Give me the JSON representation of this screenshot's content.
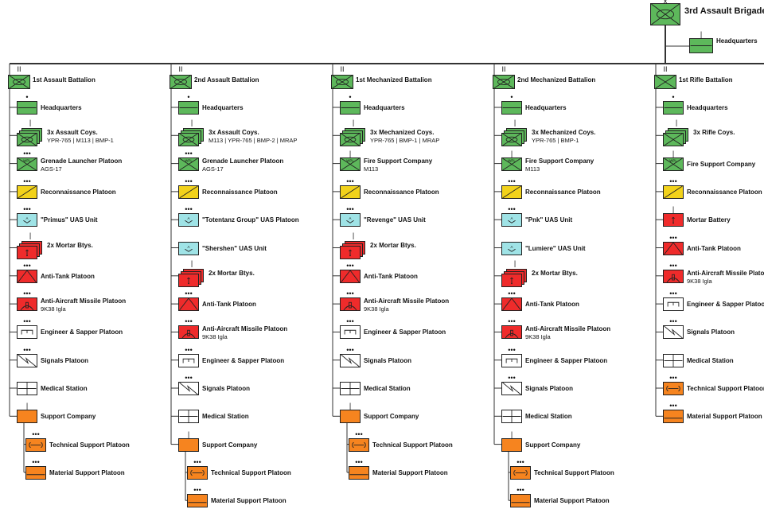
{
  "colors": {
    "infantry": "#5db85b",
    "recon": "#f2d21b",
    "uas": "#9fe3e6",
    "fires": "#ef2b2b",
    "support": "#f6841f",
    "white": "#ffffff",
    "line": "#333333"
  },
  "brigade": {
    "name": "3rd Assault Brigade",
    "echelon": "X",
    "icon": "infantry-mechanized-icon",
    "hq": {
      "name": "Headquarters",
      "echelon": "|"
    }
  },
  "battalions": [
    {
      "name": "1st Assault Battalion",
      "echelon": "II",
      "icon": "infantry-mechanized-icon",
      "units": [
        {
          "name": "Headquarters",
          "sub": "",
          "echelon": "•",
          "type": "infantry",
          "icon": "headquarters-icon"
        },
        {
          "name": "3x Assault Coys.",
          "sub": "YPR-765 | M113 | BMP-1",
          "echelon": "|",
          "type": "infantry",
          "icon": "mechanized-infantry-icon",
          "stack": true
        },
        {
          "name": "Grenade Launcher Platoon",
          "sub": "AGS-17",
          "echelon": "•••",
          "type": "infantry",
          "icon": "grenade-launcher-icon"
        },
        {
          "name": "Reconnaissance Platoon",
          "sub": "",
          "echelon": "•••",
          "type": "recon",
          "icon": "reconnaissance-icon"
        },
        {
          "name": "\"Primus\" UAS Unit",
          "sub": "",
          "echelon": "•••",
          "type": "uas",
          "icon": "uas-icon"
        },
        {
          "name": "2x Mortar Btys.",
          "sub": "",
          "echelon": "|",
          "type": "fires",
          "icon": "mortar-icon",
          "stack": true
        },
        {
          "name": "Anti-Tank Platoon",
          "sub": "",
          "echelon": "•••",
          "type": "fires",
          "icon": "anti-tank-icon"
        },
        {
          "name": "Anti-Aircraft Missile Platoon",
          "sub": "9K38 Igla",
          "echelon": "•••",
          "type": "fires",
          "icon": "air-defense-icon"
        },
        {
          "name": "Engineer & Sapper Platoon",
          "sub": "",
          "echelon": "•••",
          "type": "white",
          "icon": "engineer-icon"
        },
        {
          "name": "Signals Platoon",
          "sub": "",
          "echelon": "•••",
          "type": "white",
          "icon": "signals-icon"
        },
        {
          "name": "Medical Station",
          "sub": "",
          "echelon": "",
          "type": "white",
          "icon": "medical-icon"
        },
        {
          "name": "Support Company",
          "sub": "",
          "echelon": "|",
          "type": "support",
          "icon": "support-icon"
        }
      ],
      "subunits": [
        {
          "name": "Technical Support Platoon",
          "sub": "",
          "echelon": "•••",
          "type": "support",
          "icon": "maintenance-icon"
        },
        {
          "name": "Material Support Platoon",
          "sub": "",
          "echelon": "•••",
          "type": "support",
          "icon": "supply-icon"
        }
      ]
    },
    {
      "name": "2nd Assault Battalion",
      "echelon": "II",
      "icon": "infantry-mechanized-icon",
      "units": [
        {
          "name": "Headquarters",
          "sub": "",
          "echelon": "•",
          "type": "infantry",
          "icon": "headquarters-icon"
        },
        {
          "name": "3x Assault Coys.",
          "sub": "M113 | YPR-765 | BMP-2 | MRAP",
          "echelon": "|",
          "type": "infantry",
          "icon": "mechanized-infantry-icon",
          "stack": true
        },
        {
          "name": "Grenade Launcher Platoon",
          "sub": "AGS-17",
          "echelon": "•••",
          "type": "infantry",
          "icon": "grenade-launcher-icon"
        },
        {
          "name": "Reconnaissance Platoon",
          "sub": "",
          "echelon": "•••",
          "type": "recon",
          "icon": "reconnaissance-icon"
        },
        {
          "name": "\"Totentanz Group\" UAS Platoon",
          "sub": "",
          "echelon": "•••",
          "type": "uas",
          "icon": "uas-icon"
        },
        {
          "name": "\"Shershen\" UAS Unit",
          "sub": "",
          "echelon": "",
          "type": "uas",
          "icon": "uas-icon"
        },
        {
          "name": "2x Mortar Btys.",
          "sub": "",
          "echelon": "|",
          "type": "fires",
          "icon": "mortar-icon",
          "stack": true
        },
        {
          "name": "Anti-Tank Platoon",
          "sub": "",
          "echelon": "•••",
          "type": "fires",
          "icon": "anti-tank-icon"
        },
        {
          "name": "Anti-Aircraft Missile Platoon",
          "sub": "9K38 Igla",
          "echelon": "•••",
          "type": "fires",
          "icon": "air-defense-icon"
        },
        {
          "name": "Engineer & Sapper Platoon",
          "sub": "",
          "echelon": "•••",
          "type": "white",
          "icon": "engineer-icon"
        },
        {
          "name": "Signals Platoon",
          "sub": "",
          "echelon": "•••",
          "type": "white",
          "icon": "signals-icon"
        },
        {
          "name": "Medical Station",
          "sub": "",
          "echelon": "",
          "type": "white",
          "icon": "medical-icon"
        },
        {
          "name": "Support Company",
          "sub": "",
          "echelon": "|",
          "type": "support",
          "icon": "support-icon"
        }
      ],
      "subunits": [
        {
          "name": "Technical Support Platoon",
          "sub": "",
          "echelon": "•••",
          "type": "support",
          "icon": "maintenance-icon"
        },
        {
          "name": "Material Support Platoon",
          "sub": "",
          "echelon": "•••",
          "type": "support",
          "icon": "supply-icon"
        }
      ]
    },
    {
      "name": "1st Mechanized Battalion",
      "echelon": "II",
      "icon": "infantry-mechanized-icon",
      "units": [
        {
          "name": "Headquarters",
          "sub": "",
          "echelon": "•",
          "type": "infantry",
          "icon": "headquarters-icon"
        },
        {
          "name": "3x Mechanized Coys.",
          "sub": "YPR-765 | BMP-1 | MRAP",
          "echelon": "|",
          "type": "infantry",
          "icon": "mechanized-infantry-icon",
          "stack": true
        },
        {
          "name": "Fire Support Company",
          "sub": "M113",
          "echelon": "|",
          "type": "infantry",
          "icon": "grenade-launcher-icon"
        },
        {
          "name": "Reconnaissance Platoon",
          "sub": "",
          "echelon": "•••",
          "type": "recon",
          "icon": "reconnaissance-icon"
        },
        {
          "name": "\"Revenge\" UAS Unit",
          "sub": "",
          "echelon": "•••",
          "type": "uas",
          "icon": "uas-icon"
        },
        {
          "name": "2x Mortar Btys.",
          "sub": "",
          "echelon": "|",
          "type": "fires",
          "icon": "mortar-icon",
          "stack": true
        },
        {
          "name": "Anti-Tank Platoon",
          "sub": "",
          "echelon": "•••",
          "type": "fires",
          "icon": "anti-tank-icon"
        },
        {
          "name": "Anti-Aircraft Missile Platoon",
          "sub": "9K38 Igla",
          "echelon": "•••",
          "type": "fires",
          "icon": "air-defense-icon"
        },
        {
          "name": "Engineer & Sapper Platoon",
          "sub": "",
          "echelon": "•••",
          "type": "white",
          "icon": "engineer-icon"
        },
        {
          "name": "Signals Platoon",
          "sub": "",
          "echelon": "•••",
          "type": "white",
          "icon": "signals-icon"
        },
        {
          "name": "Medical Station",
          "sub": "",
          "echelon": "",
          "type": "white",
          "icon": "medical-icon"
        },
        {
          "name": "Support Company",
          "sub": "",
          "echelon": "|",
          "type": "support",
          "icon": "support-icon"
        }
      ],
      "subunits": [
        {
          "name": "Technical Support Platoon",
          "sub": "",
          "echelon": "•••",
          "type": "support",
          "icon": "maintenance-icon"
        },
        {
          "name": "Material Support Platoon",
          "sub": "",
          "echelon": "•••",
          "type": "support",
          "icon": "supply-icon"
        }
      ]
    },
    {
      "name": "2nd Mechanized Battalion",
      "echelon": "II",
      "icon": "infantry-mechanized-icon",
      "units": [
        {
          "name": "Headquarters",
          "sub": "",
          "echelon": "•",
          "type": "infantry",
          "icon": "headquarters-icon"
        },
        {
          "name": "3x Mechanized Coys.",
          "sub": "YPR-765 | BMP-1",
          "echelon": "|",
          "type": "infantry",
          "icon": "mechanized-infantry-icon",
          "stack": true
        },
        {
          "name": "Fire Support Company",
          "sub": "M113",
          "echelon": "|",
          "type": "infantry",
          "icon": "grenade-launcher-icon"
        },
        {
          "name": "Reconnaissance Platoon",
          "sub": "",
          "echelon": "•••",
          "type": "recon",
          "icon": "reconnaissance-icon"
        },
        {
          "name": "\"Pnk\" UAS Unit",
          "sub": "",
          "echelon": "•••",
          "type": "uas",
          "icon": "uas-icon"
        },
        {
          "name": "\"Lumiere\" UAS Unit",
          "sub": "",
          "echelon": "",
          "type": "uas",
          "icon": "uas-icon"
        },
        {
          "name": "2x Mortar Btys.",
          "sub": "",
          "echelon": "|",
          "type": "fires",
          "icon": "mortar-icon",
          "stack": true
        },
        {
          "name": "Anti-Tank Platoon",
          "sub": "",
          "echelon": "•••",
          "type": "fires",
          "icon": "anti-tank-icon"
        },
        {
          "name": "Anti-Aircraft Missile Platoon",
          "sub": "9K38 Igla",
          "echelon": "•••",
          "type": "fires",
          "icon": "air-defense-icon"
        },
        {
          "name": "Engineer & Sapper Platoon",
          "sub": "",
          "echelon": "•••",
          "type": "white",
          "icon": "engineer-icon"
        },
        {
          "name": "Signals Platoon",
          "sub": "",
          "echelon": "•••",
          "type": "white",
          "icon": "signals-icon"
        },
        {
          "name": "Medical Station",
          "sub": "",
          "echelon": "",
          "type": "white",
          "icon": "medical-icon"
        },
        {
          "name": "Support Company",
          "sub": "",
          "echelon": "|",
          "type": "support",
          "icon": "support-icon"
        }
      ],
      "subunits": [
        {
          "name": "Technical Support Platoon",
          "sub": "",
          "echelon": "•••",
          "type": "support",
          "icon": "maintenance-icon"
        },
        {
          "name": "Material Support Platoon",
          "sub": "",
          "echelon": "•••",
          "type": "support",
          "icon": "supply-icon"
        }
      ]
    },
    {
      "name": "1st Rifle Battalion",
      "echelon": "II",
      "icon": "infantry-icon",
      "units": [
        {
          "name": "Headquarters",
          "sub": "",
          "echelon": "•",
          "type": "infantry",
          "icon": "headquarters-icon"
        },
        {
          "name": "3x Rifle Coys.",
          "sub": "",
          "echelon": "|",
          "type": "infantry",
          "icon": "infantry-icon",
          "stack": true
        },
        {
          "name": "Fire Support Company",
          "sub": "",
          "echelon": "|",
          "type": "infantry",
          "icon": "grenade-launcher-icon"
        },
        {
          "name": "Reconnaissance Platoon",
          "sub": "",
          "echelon": "•••",
          "type": "recon",
          "icon": "reconnaissance-icon"
        },
        {
          "name": "Mortar Battery",
          "sub": "",
          "echelon": "|",
          "type": "fires",
          "icon": "mortar-icon"
        },
        {
          "name": "Anti-Tank Platoon",
          "sub": "",
          "echelon": "•••",
          "type": "fires",
          "icon": "anti-tank-icon"
        },
        {
          "name": "Anti-Aircraft Missile Platoon",
          "sub": "9K38 Igla",
          "echelon": "•••",
          "type": "fires",
          "icon": "air-defense-icon"
        },
        {
          "name": "Engineer & Sapper Platoon",
          "sub": "",
          "echelon": "•••",
          "type": "white",
          "icon": "engineer-icon"
        },
        {
          "name": "Signals Platoon",
          "sub": "",
          "echelon": "•••",
          "type": "white",
          "icon": "signals-icon"
        },
        {
          "name": "Medical Station",
          "sub": "",
          "echelon": "",
          "type": "white",
          "icon": "medical-icon"
        },
        {
          "name": "Technical Support Platoon",
          "sub": "",
          "echelon": "•••",
          "type": "support",
          "icon": "maintenance-icon"
        },
        {
          "name": "Material Support Platoon",
          "sub": "",
          "echelon": "•••",
          "type": "support",
          "icon": "supply-icon"
        }
      ],
      "subunits": []
    }
  ]
}
